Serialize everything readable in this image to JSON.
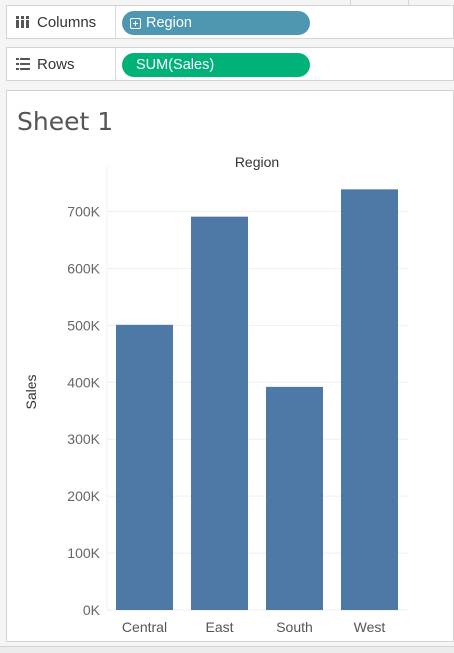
{
  "shelves": {
    "columns": {
      "label": "Columns",
      "icon": "columns-icon",
      "pill": "Region",
      "pill_color": "#4e97b1"
    },
    "rows": {
      "label": "Rows",
      "icon": "rows-icon",
      "pill": "SUM(Sales)",
      "pill_color": "#00b27a"
    }
  },
  "sheet": {
    "title": "Sheet 1"
  },
  "chart_data": {
    "type": "bar",
    "title": "Region",
    "xlabel": "",
    "ylabel": "Sales",
    "categories": [
      "Central",
      "East",
      "South",
      "West"
    ],
    "values": [
      501000,
      691000,
      392000,
      739000
    ],
    "ylim": [
      0,
      780000
    ],
    "yticks": [
      0,
      100000,
      200000,
      300000,
      400000,
      500000,
      600000,
      700000
    ],
    "ytick_labels": [
      "0K",
      "100K",
      "200K",
      "300K",
      "400K",
      "500K",
      "600K",
      "700K"
    ],
    "bar_color": "#4e79a7",
    "grid": true
  }
}
